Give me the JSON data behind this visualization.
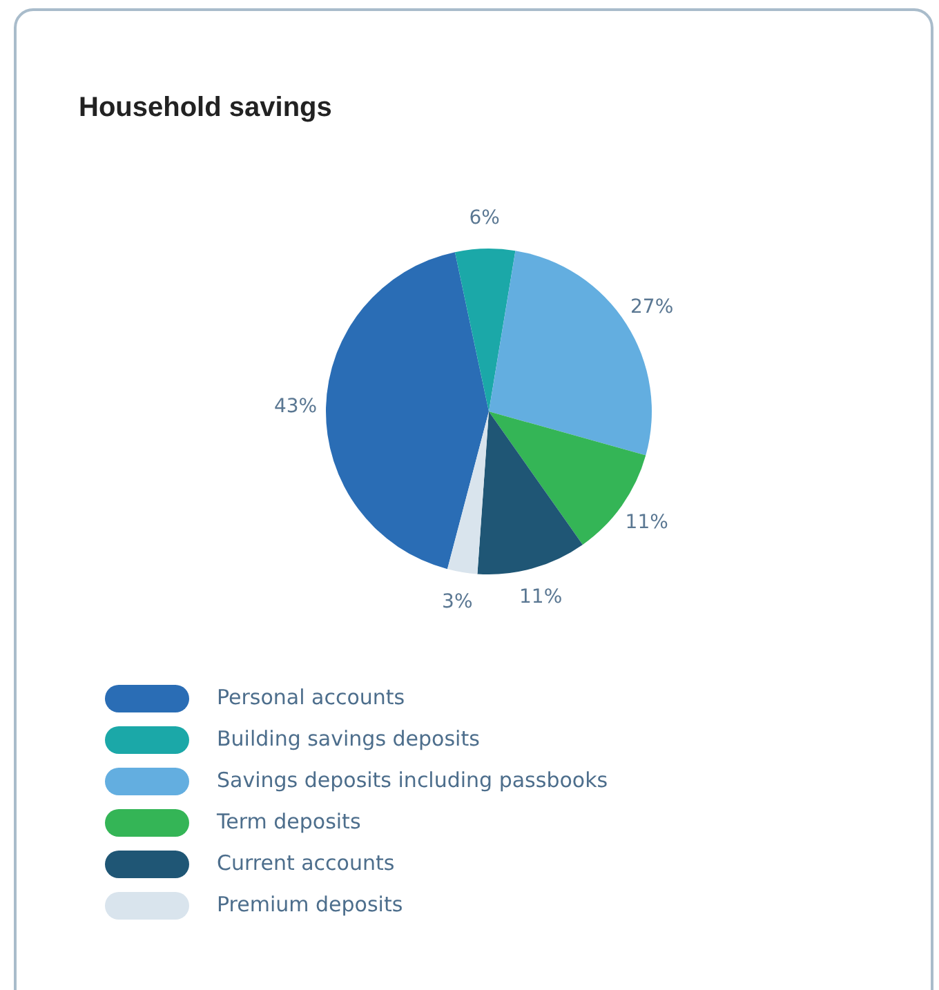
{
  "chart_data": {
    "type": "pie",
    "title": "Household savings",
    "categories": [
      "Personal accounts",
      "Building savings deposits",
      "Savings deposits including passbooks",
      "Term deposits",
      "Current accounts",
      "Premium deposits"
    ],
    "values": [
      43,
      6,
      27,
      11,
      11,
      3
    ],
    "value_labels": [
      "43%",
      "6%",
      "27%",
      "11%",
      "11%",
      "3%"
    ],
    "colors": [
      "#2a6db5",
      "#1ba8a8",
      "#63aee0",
      "#34b556",
      "#1f5675",
      "#d9e4ed"
    ],
    "legend": "bottom"
  }
}
